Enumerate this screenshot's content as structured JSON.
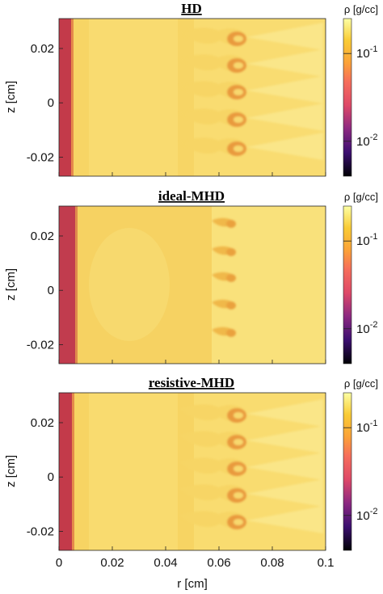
{
  "colormap": [
    "#000004",
    "#3b0f70",
    "#8c2981",
    "#de4968",
    "#f66e5b",
    "#fba238",
    "#f9cb35",
    "#fcffa4"
  ],
  "shared": {
    "xlabel": "r [cm]",
    "ylabel": "z [cm]",
    "x_ticks": [
      "0",
      "0.02",
      "0.04",
      "0.06",
      "0.08",
      "0.1"
    ],
    "y_ticks": [
      "0.02",
      "0",
      "-0.02"
    ],
    "colorbar_label": "ρ [g/cc]",
    "colorbar_ticks": [
      {
        "label": "10",
        "exp": "-1",
        "value": 0.1
      },
      {
        "label": "10",
        "exp": "-2",
        "value": 0.01
      }
    ]
  },
  "chart_data": [
    {
      "type": "heatmap",
      "title": "HD",
      "xlim": [
        0,
        0.1
      ],
      "ylim": [
        -0.027,
        0.031
      ],
      "clim": [
        0.004,
        0.25
      ],
      "colorscale": "log",
      "grid": false,
      "x_ticks": [
        0,
        0.02,
        0.04,
        0.06,
        0.08,
        0.1
      ],
      "y_ticks": [
        0.02,
        0,
        -0.02
      ],
      "features": {
        "dense_wall": {
          "r_min": 0,
          "r_max": 0.0045,
          "rho": 0.02
        },
        "bulk_rho": 0.12,
        "interface_r": 0.05,
        "mushroom_z": [
          0.026,
          0.013,
          0,
          -0.013,
          -0.026
        ],
        "mushroom_r": 0.068
      }
    },
    {
      "type": "heatmap",
      "title": "ideal-MHD",
      "xlim": [
        0,
        0.1
      ],
      "ylim": [
        -0.027,
        0.031
      ],
      "clim": [
        0.004,
        0.25
      ],
      "colorscale": "log",
      "grid": false,
      "x_ticks": [
        0,
        0.02,
        0.04,
        0.06,
        0.08,
        0.1
      ],
      "y_ticks": [
        0.02,
        0,
        -0.02
      ],
      "features": {
        "dense_wall": {
          "r_min": 0,
          "r_max": 0.0065,
          "rho": 0.02
        },
        "bulk_rho": 0.12,
        "interface_r": 0.057,
        "mushroom_z": [
          0.026,
          0.013,
          0,
          -0.013,
          -0.026
        ],
        "mushroom_r": 0.06
      }
    },
    {
      "type": "heatmap",
      "title": "resistive-MHD",
      "xlim": [
        0,
        0.1
      ],
      "ylim": [
        -0.027,
        0.031
      ],
      "clim": [
        0.004,
        0.25
      ],
      "colorscale": "log",
      "grid": false,
      "x_ticks": [
        0,
        0.02,
        0.04,
        0.06,
        0.08,
        0.1
      ],
      "y_ticks": [
        0.02,
        0,
        -0.02
      ],
      "features": {
        "dense_wall": {
          "r_min": 0,
          "r_max": 0.005,
          "rho": 0.02
        },
        "bulk_rho": 0.12,
        "interface_r": 0.05,
        "mushroom_z": [
          0.026,
          0.013,
          0,
          -0.013,
          -0.026
        ],
        "mushroom_r": 0.068
      }
    }
  ]
}
